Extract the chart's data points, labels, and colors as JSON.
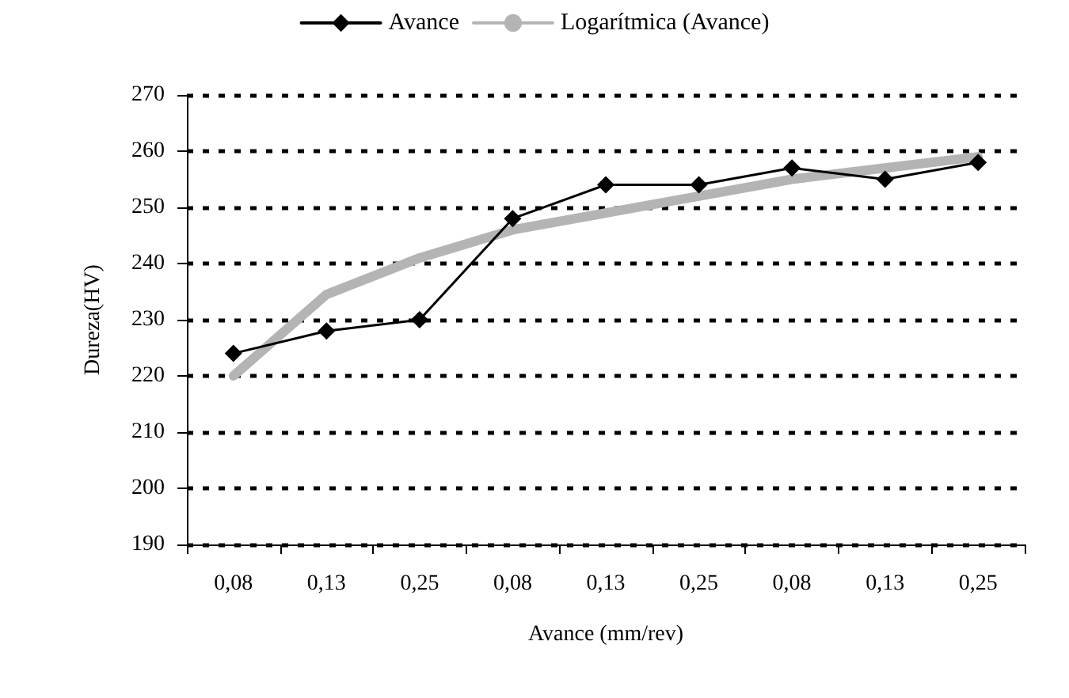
{
  "chart_data": {
    "type": "line",
    "xlabel": "Avance (mm/rev)",
    "ylabel": "Dureza(HV)",
    "categories": [
      "0,08",
      "0,13",
      "0,25",
      "0,08",
      "0,13",
      "0,25",
      "0,08",
      "0,13",
      "0,25"
    ],
    "series": [
      {
        "name": "Avance",
        "color": "#000000",
        "marker": "diamond",
        "line_style": "solid",
        "values": [
          224,
          228,
          230,
          248,
          254,
          254,
          257,
          255,
          258
        ]
      },
      {
        "name": "Logarítmica (Avance)",
        "color": "#b4b4b4",
        "marker": "none",
        "line_style": "solid",
        "values": [
          220,
          234.5,
          241,
          246,
          249,
          252,
          255,
          257,
          259
        ]
      }
    ],
    "ylim": [
      190,
      270
    ],
    "yticks": [
      190,
      200,
      210,
      220,
      230,
      240,
      250,
      260,
      270
    ],
    "grid": "y",
    "legend": "top"
  }
}
